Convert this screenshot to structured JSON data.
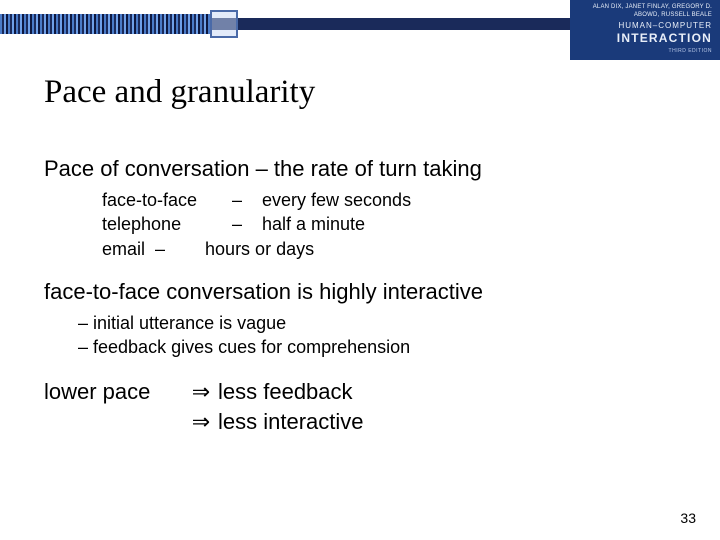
{
  "colors": {
    "header_bar": "#1a2a5a",
    "book_bg": "#1a3a7a",
    "text": "#000000",
    "background": "#ffffff"
  },
  "book": {
    "authors": "ALAN DIX, JANET FINLAY, GREGORY D. ABOWD, RUSSELL BEALE",
    "title1": "HUMAN–COMPUTER",
    "title2": "INTERACTION",
    "edition": "THIRD EDITION"
  },
  "title": "Pace and granularity",
  "section1": {
    "heading": "Pace of conversation – the rate of turn taking",
    "rows": [
      {
        "label": "face-to-face",
        "dash": "–",
        "value": "every few seconds"
      },
      {
        "label": "telephone",
        "dash": "–",
        "value": "half a minute"
      }
    ],
    "row3": "email  –        hours or days"
  },
  "section2": {
    "heading": "face-to-face conversation is highly interactive",
    "bullets": [
      "initial utterance is vague",
      "feedback gives cues for comprehension"
    ]
  },
  "section3": {
    "left": "lower pace",
    "arrow": "⇒",
    "right1": "less feedback",
    "right2": "less interactive"
  },
  "page": "33"
}
